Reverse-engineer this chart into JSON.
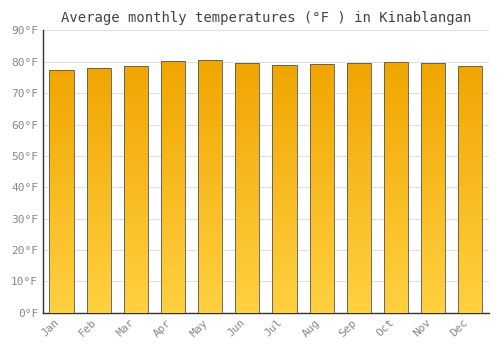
{
  "title": "Average monthly temperatures (°F ) in Kinablangan",
  "months": [
    "Jan",
    "Feb",
    "Mar",
    "Apr",
    "May",
    "Jun",
    "Jul",
    "Aug",
    "Sep",
    "Oct",
    "Nov",
    "Dec"
  ],
  "values": [
    77.5,
    77.9,
    78.8,
    80.2,
    80.6,
    79.7,
    79.0,
    79.3,
    79.7,
    79.9,
    79.5,
    78.8
  ],
  "bar_color_top": "#F0A500",
  "bar_color_bottom": "#FFD040",
  "background_color": "#FFFFFF",
  "plot_bg_color": "#FFFFFF",
  "grid_color": "#E0E0E0",
  "ylim": [
    0,
    90
  ],
  "yticks": [
    0,
    10,
    20,
    30,
    40,
    50,
    60,
    70,
    80,
    90
  ],
  "ytick_labels": [
    "0°F",
    "10°F",
    "20°F",
    "30°F",
    "40°F",
    "50°F",
    "60°F",
    "70°F",
    "80°F",
    "90°F"
  ],
  "bar_edge_color": "#555555",
  "title_fontsize": 10,
  "tick_fontsize": 8,
  "font_family": "monospace",
  "tick_color": "#888888",
  "spine_color": "#333333"
}
